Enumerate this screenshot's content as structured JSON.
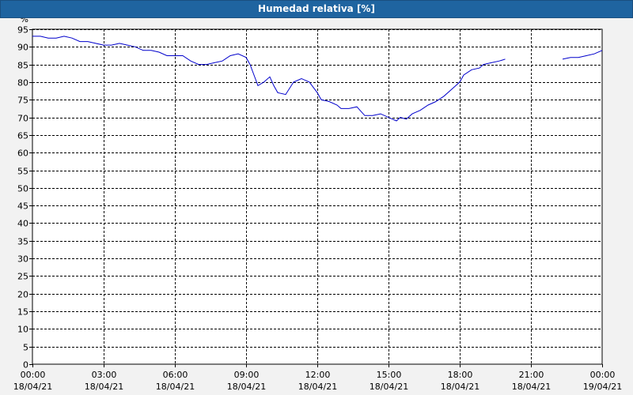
{
  "chart_data": {
    "type": "line",
    "title": "Humedad relativa [%]",
    "ylabel": "%",
    "ylim": [
      0,
      95
    ],
    "yticks": [
      0,
      5,
      10,
      15,
      20,
      25,
      30,
      35,
      40,
      45,
      50,
      55,
      60,
      65,
      70,
      75,
      80,
      85,
      90,
      95
    ],
    "xlim": [
      "00:00 18/04/21",
      "00:00 19/04/21"
    ],
    "xticks": [
      {
        "time": "00:00",
        "date": "18/04/21"
      },
      {
        "time": "03:00",
        "date": "18/04/21"
      },
      {
        "time": "06:00",
        "date": "18/04/21"
      },
      {
        "time": "09:00",
        "date": "18/04/21"
      },
      {
        "time": "12:00",
        "date": "18/04/21"
      },
      {
        "time": "15:00",
        "date": "18/04/21"
      },
      {
        "time": "18:00",
        "date": "18/04/21"
      },
      {
        "time": "21:00",
        "date": "18/04/21"
      },
      {
        "time": "00:00",
        "date": "19/04/21"
      }
    ],
    "grid": true,
    "series_color": "#0000cc",
    "series": [
      {
        "segments": [
          [
            [
              "00:00",
              93.0
            ],
            [
              "00:20",
              93.0
            ],
            [
              "00:40",
              92.5
            ],
            [
              "01:00",
              92.5
            ],
            [
              "01:20",
              93.0
            ],
            [
              "01:40",
              92.5
            ],
            [
              "02:00",
              91.5
            ],
            [
              "02:20",
              91.5
            ],
            [
              "02:40",
              91.0
            ],
            [
              "03:00",
              90.5
            ],
            [
              "03:20",
              90.5
            ],
            [
              "03:40",
              91.0
            ],
            [
              "04:00",
              90.5
            ],
            [
              "04:20",
              90.0
            ],
            [
              "04:40",
              89.0
            ],
            [
              "05:00",
              89.0
            ],
            [
              "05:20",
              88.5
            ],
            [
              "05:40",
              87.5
            ],
            [
              "06:00",
              87.5
            ],
            [
              "06:20",
              87.5
            ],
            [
              "06:40",
              86.0
            ],
            [
              "07:00",
              85.0
            ],
            [
              "07:20",
              85.0
            ],
            [
              "07:40",
              85.5
            ],
            [
              "08:00",
              86.0
            ],
            [
              "08:20",
              87.5
            ],
            [
              "08:40",
              88.0
            ],
            [
              "09:00",
              87.0
            ],
            [
              "09:10",
              85.0
            ],
            [
              "09:20",
              82.0
            ],
            [
              "09:30",
              79.0
            ],
            [
              "09:45",
              80.0
            ],
            [
              "10:00",
              81.5
            ],
            [
              "10:10",
              79.0
            ],
            [
              "10:20",
              77.0
            ],
            [
              "10:40",
              76.5
            ],
            [
              "11:00",
              80.0
            ],
            [
              "11:20",
              81.0
            ],
            [
              "11:40",
              80.0
            ],
            [
              "12:00",
              77.0
            ],
            [
              "12:10",
              75.0
            ],
            [
              "12:30",
              74.5
            ],
            [
              "12:50",
              73.5
            ],
            [
              "13:00",
              72.5
            ],
            [
              "13:20",
              72.5
            ],
            [
              "13:40",
              73.0
            ],
            [
              "14:00",
              70.5
            ],
            [
              "14:20",
              70.5
            ],
            [
              "14:40",
              71.0
            ],
            [
              "15:00",
              70.0
            ],
            [
              "15:10",
              69.5
            ],
            [
              "15:20",
              69.0
            ],
            [
              "15:30",
              70.0
            ],
            [
              "15:45",
              69.5
            ],
            [
              "16:00",
              71.0
            ],
            [
              "16:20",
              72.0
            ],
            [
              "16:40",
              73.5
            ],
            [
              "17:00",
              74.5
            ],
            [
              "17:20",
              76.0
            ],
            [
              "17:40",
              78.0
            ],
            [
              "18:00",
              80.0
            ],
            [
              "18:10",
              82.0
            ],
            [
              "18:30",
              83.5
            ],
            [
              "18:50",
              84.0
            ],
            [
              "19:00",
              85.0
            ],
            [
              "19:20",
              85.5
            ],
            [
              "19:40",
              86.0
            ],
            [
              "19:55",
              86.5
            ]
          ],
          [
            [
              "22:20",
              86.5
            ],
            [
              "22:40",
              87.0
            ],
            [
              "23:00",
              87.0
            ],
            [
              "23:20",
              87.5
            ],
            [
              "23:40",
              88.0
            ],
            [
              "24:00",
              89.0
            ]
          ]
        ]
      }
    ]
  }
}
